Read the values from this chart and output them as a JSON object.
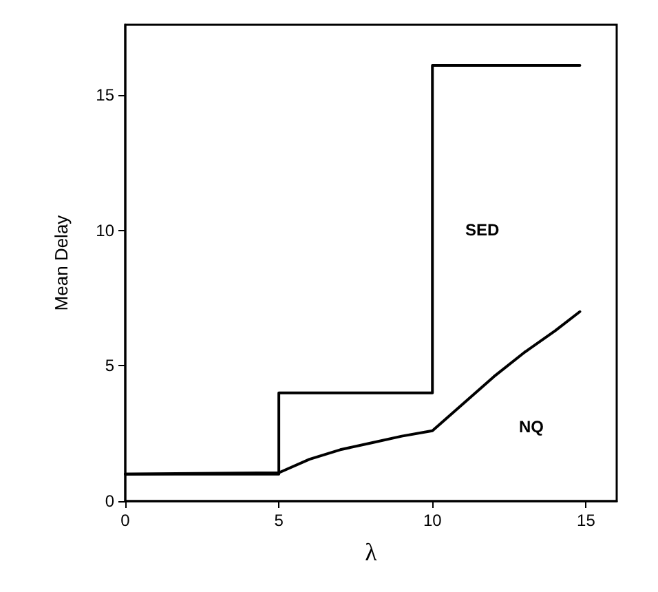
{
  "chart_data": {
    "type": "line",
    "xlabel": "λ",
    "ylabel": "Mean Delay",
    "xlim": [
      0,
      16
    ],
    "ylim": [
      0,
      17.6
    ],
    "xticks": [
      0,
      5,
      10,
      15
    ],
    "yticks": [
      0,
      5,
      10,
      15
    ],
    "grid": false,
    "marker": "none",
    "line_style": "solid",
    "series": [
      {
        "type": "step",
        "color": "#000000",
        "x": [
          0,
          5,
          10,
          14.8
        ],
        "values": [
          1,
          4,
          16.1,
          16.1
        ]
      },
      {
        "color": "#000000",
        "x": [
          0,
          5,
          6,
          7,
          8,
          9,
          10,
          11,
          12,
          13,
          14,
          14.8
        ],
        "values": [
          1,
          1.05,
          1.55,
          1.9,
          2.15,
          2.4,
          2.6,
          3.6,
          4.6,
          5.5,
          6.3,
          7
        ]
      }
    ],
    "annotations": [
      "SED",
      "NQ"
    ]
  }
}
